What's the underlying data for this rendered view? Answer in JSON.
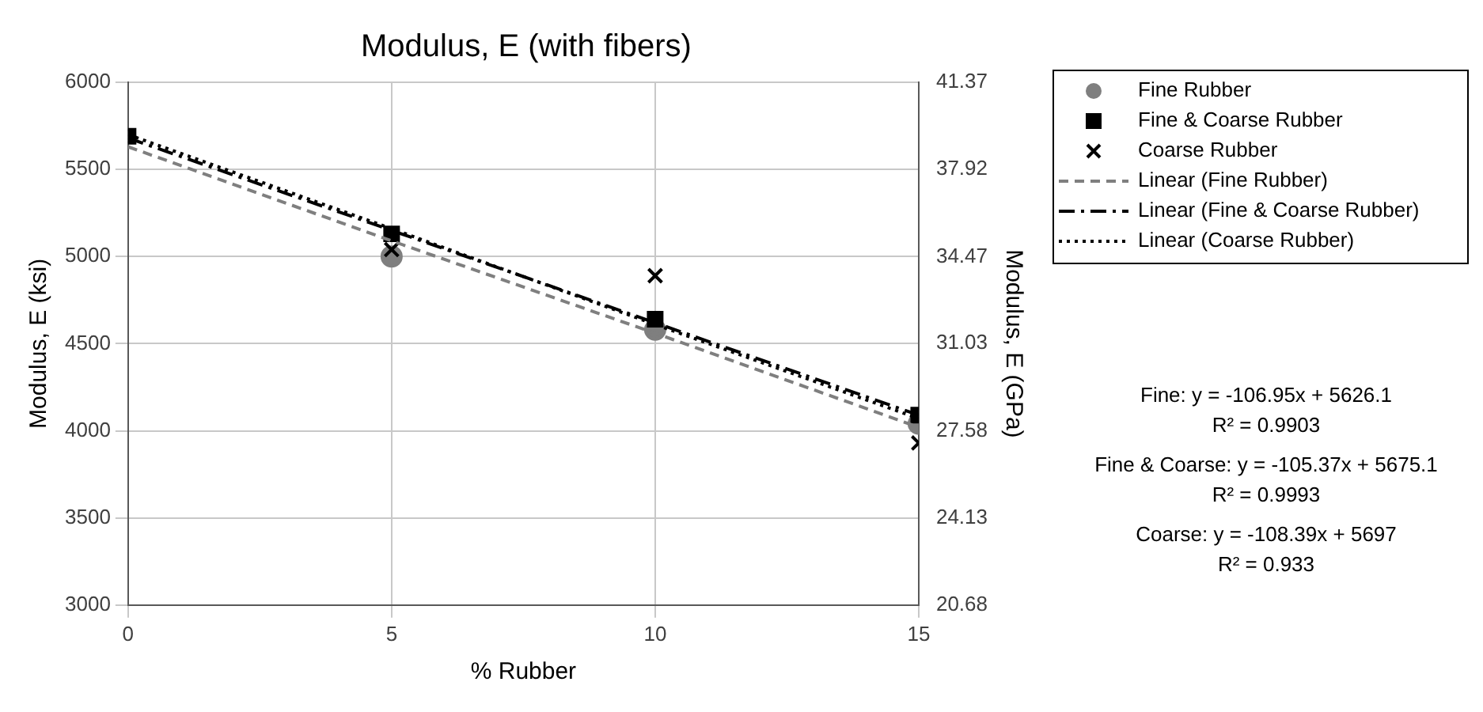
{
  "chart_data": {
    "type": "scatter",
    "title": "Modulus, E (with fibers)",
    "xlabel": "% Rubber",
    "ylabel": "Modulus, E (ksi)",
    "y2label": "Modulus, E (GPa)",
    "x": [
      0,
      5,
      10,
      15
    ],
    "series": [
      {
        "name": "Fine Rubber",
        "color": "#7f7f7f",
        "marker": "circle",
        "values": [
          null,
          5000,
          4580,
          4040
        ]
      },
      {
        "name": "Fine & Coarse Rubber",
        "color": "#000000",
        "marker": "square",
        "values": [
          5690,
          5130,
          4640,
          4090
        ]
      },
      {
        "name": "Coarse Rubber",
        "color": "#000000",
        "marker": "cross",
        "values": [
          null,
          5040,
          4890,
          3930
        ]
      },
      {
        "name": "Linear (Fine Rubber)",
        "type": "line",
        "color": "#7f7f7f",
        "line_style": "dashed",
        "marker": "none",
        "values": [
          5630,
          5090,
          4560,
          4020
        ]
      },
      {
        "name": "Linear (Fine & Coarse Rubber)",
        "type": "line",
        "color": "#000000",
        "line_style": "dashdot",
        "marker": "none",
        "values": [
          5680,
          5150,
          4620,
          4090
        ]
      },
      {
        "name": "Linear (Coarse Rubber)",
        "type": "line",
        "color": "#000000",
        "line_style": "dotted",
        "marker": "none",
        "values": [
          5700,
          5160,
          4610,
          4070
        ]
      }
    ],
    "xlim": [
      0,
      15
    ],
    "xticks": [
      0,
      5,
      10,
      15
    ],
    "ylim": [
      3000,
      6000
    ],
    "yticks": [
      3000,
      3500,
      4000,
      4500,
      5000,
      5500,
      6000
    ],
    "y2lim": [
      20.68,
      41.37
    ],
    "y2ticks": [
      20.68,
      24.13,
      27.58,
      31.03,
      34.47,
      37.92,
      41.37
    ],
    "grid": true,
    "legend": "right",
    "annotations": [
      "Fine: y = -106.95x + 5626.1",
      "R² = 0.9903",
      "Fine & Coarse: y = -105.37x + 5675.1",
      "R² = 0.9993",
      "Coarse: y = -108.39x + 5697",
      "R² = 0.933"
    ]
  }
}
